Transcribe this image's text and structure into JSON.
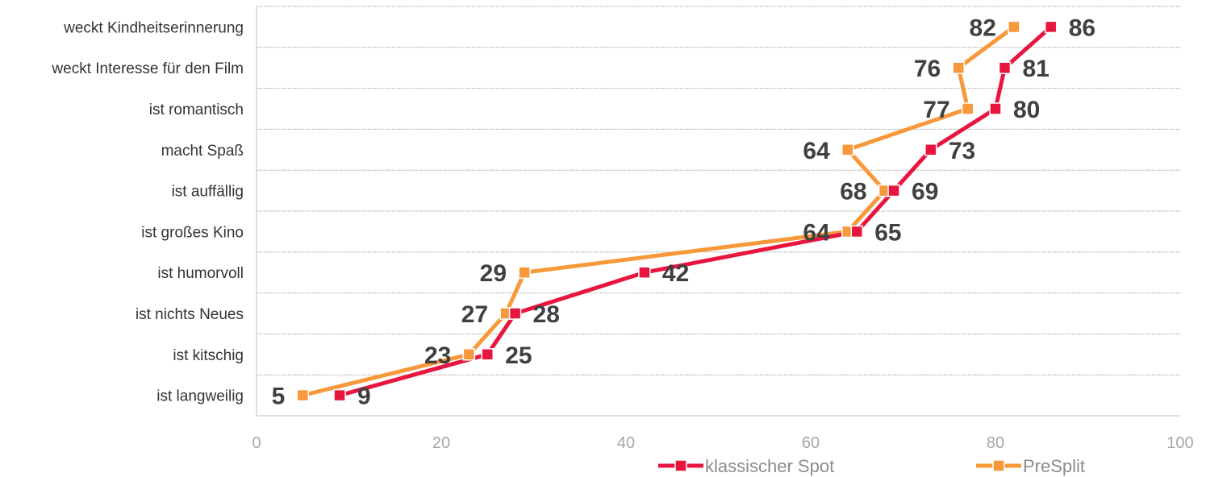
{
  "chart_data": {
    "type": "line",
    "categories": [
      "weckt Kindheitserinnerung",
      "weckt Interesse für den Film",
      "ist romantisch",
      "macht Spaß",
      "ist auffällig",
      "ist großes Kino",
      "ist humorvoll",
      "ist nichts Neues",
      "ist kitschig",
      "ist langweilig"
    ],
    "series": [
      {
        "name": "klassischer Spot",
        "color": "#e8153f",
        "marker": "square",
        "values": [
          86,
          81,
          80,
          73,
          69,
          65,
          42,
          28,
          25,
          9
        ],
        "value_labels": [
          "86",
          "81",
          "80",
          "73",
          "69",
          "65",
          "42",
          "28",
          "25",
          "9"
        ]
      },
      {
        "name": "PreSplit",
        "color": "#f7983a",
        "marker": "square",
        "values": [
          82,
          76,
          77,
          64,
          68,
          64,
          29,
          27,
          23,
          5
        ],
        "value_labels": [
          "82",
          "76",
          "77",
          "64",
          "68",
          "64",
          "29",
          "27",
          "23",
          "5"
        ]
      }
    ],
    "x_ticks": [
      "0",
      "20",
      "40",
      "60",
      "80",
      "100"
    ],
    "xlim": [
      0,
      100
    ],
    "title": "",
    "xlabel": "",
    "ylabel": "",
    "grid": "horizontal dotted",
    "legend_position": "bottom"
  }
}
